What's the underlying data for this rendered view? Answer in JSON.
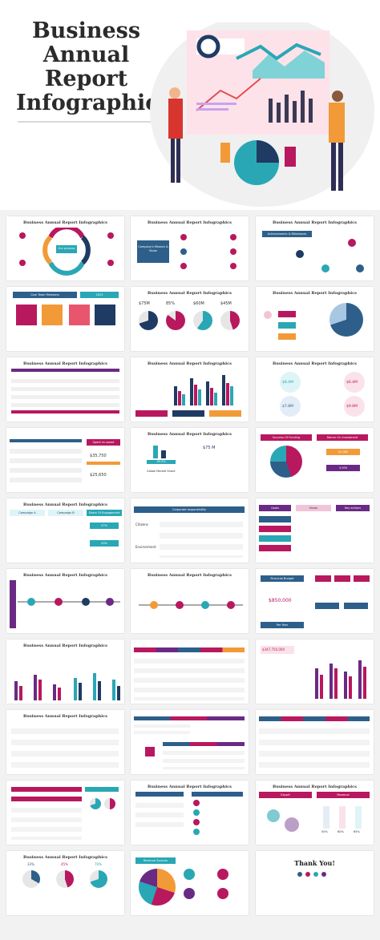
{
  "hero": {
    "title": "Business Annual Report Infographics"
  },
  "slide_title": "Business Annual Report Infographics",
  "slides": {
    "s2": {
      "center": "Our process"
    },
    "s3": {
      "left": "Company's Mission & Vision"
    },
    "s4": {
      "header": "Achievements & Milestones"
    },
    "s5": {
      "header": "Core Team Members",
      "year": "2023"
    },
    "s6": {
      "values": [
        "$75M",
        "85%",
        "$60M",
        "$45M"
      ]
    },
    "s9": {
      "values": [
        "$8.4M",
        "$6.4M",
        "$7.8M",
        "$9.8M"
      ]
    },
    "s10": {
      "a": "$35,750",
      "b": "$25,650",
      "label": "Spent vs saved"
    },
    "s11": {
      "a": "$75 M",
      "b": "49.3%",
      "c": "Global Market Share"
    },
    "s12": {
      "a": "Success Of Funding",
      "b": "Return On Investment",
      "c": "$2,080",
      "d": "3,930"
    },
    "s13": {
      "a": "Campaign A",
      "b": "Campaign B",
      "c": "Share Of Engagement",
      "d": "57%",
      "e": "43%"
    },
    "s14": {
      "header": "Corporate responsibility",
      "rows": [
        "Citizens",
        "Environment"
      ]
    },
    "s15": {
      "cols": [
        "Goals",
        "Vision",
        "Key actions"
      ]
    },
    "s18": {
      "a": "Financial Budget",
      "b": "$850,000",
      "c": "Per Year"
    },
    "s21": {
      "a": "$347,750,000"
    },
    "s26": {
      "a": "Export",
      "b": "Revenue",
      "c": [
        "50%",
        "60%",
        "65%"
      ]
    },
    "s27": {
      "a": [
        "33%",
        "45%",
        "70%"
      ]
    },
    "s28": {
      "a": "Revenue Sources",
      "b": [
        "30%",
        "45%",
        "60%"
      ]
    },
    "s29": {
      "a": "Thank You!"
    }
  },
  "colors": {
    "teal": "#2aa7b5",
    "magenta": "#b8185e",
    "navy": "#1f3b63",
    "orange": "#f29a38",
    "pink": "#f2c4d7",
    "purple": "#5b2d7e"
  }
}
